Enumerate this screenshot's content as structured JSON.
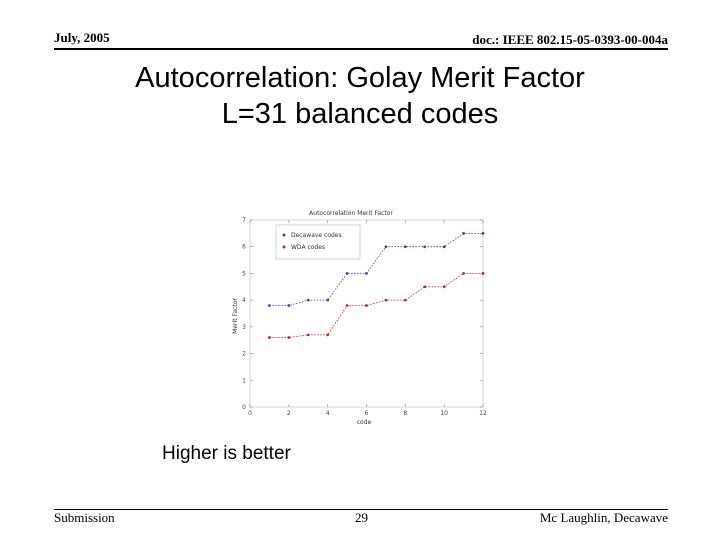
{
  "header": {
    "date": "July, 2005",
    "doc_id": "doc.: IEEE 802.15-05-0393-00-004a"
  },
  "slide": {
    "title_line1": "Autocorrelation: Golay Merit Factor",
    "title_line2": "L=31 balanced codes",
    "caption": "Higher is better"
  },
  "footer": {
    "left": "Submission",
    "page": "29",
    "author": "Mc Laughlin, Decawave"
  },
  "chart_data": {
    "type": "line",
    "title": "Autocorrelation Merit Factor",
    "xlabel": "code",
    "ylabel": "Merit Factor",
    "xlim": [
      0,
      12
    ],
    "ylim": [
      0,
      7
    ],
    "x_ticks": [
      0,
      2,
      4,
      6,
      8,
      10,
      12
    ],
    "y_ticks": [
      0,
      1,
      2,
      3,
      4,
      5,
      6,
      7
    ],
    "legend_position": "top-left",
    "series": [
      {
        "name": "Decawave codes",
        "color": "#3344cc",
        "points": [
          [
            1,
            3.8
          ],
          [
            2,
            3.8
          ],
          [
            3,
            4.0
          ],
          [
            4,
            4.0
          ],
          [
            5,
            5.0
          ],
          [
            6,
            5.0
          ],
          [
            7,
            6.0
          ],
          [
            8,
            6.0
          ],
          [
            9,
            6.0
          ],
          [
            10,
            6.0
          ],
          [
            11,
            6.5
          ],
          [
            12,
            6.5
          ]
        ]
      },
      {
        "name": "WDA codes",
        "color": "#cc2222",
        "points": [
          [
            1,
            2.6
          ],
          [
            2,
            2.6
          ],
          [
            3,
            2.7
          ],
          [
            4,
            2.7
          ],
          [
            5,
            3.8
          ],
          [
            6,
            3.8
          ],
          [
            7,
            4.0
          ],
          [
            8,
            4.0
          ],
          [
            9,
            4.5
          ],
          [
            10,
            4.5
          ],
          [
            11,
            5.0
          ],
          [
            12,
            5.0
          ]
        ]
      }
    ]
  }
}
